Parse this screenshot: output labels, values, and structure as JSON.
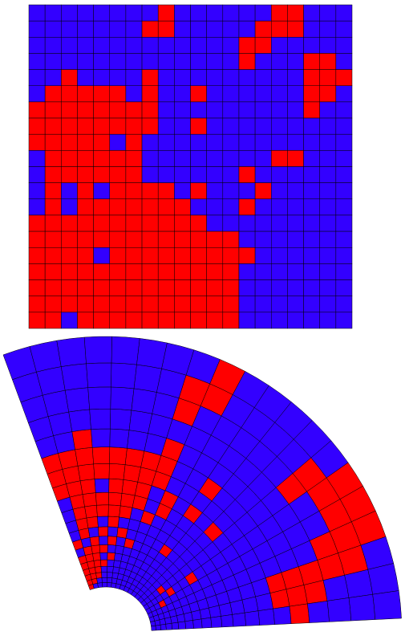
{
  "palette": [
    "#3300ff",
    "#ff0000"
  ],
  "square_grid": {
    "rows": [
      [
        0,
        0,
        0,
        0,
        0,
        0,
        0,
        0,
        1,
        0,
        0,
        0,
        0,
        0,
        0,
        1,
        1,
        0,
        0,
        0
      ],
      [
        0,
        0,
        0,
        0,
        0,
        0,
        0,
        1,
        1,
        0,
        0,
        0,
        0,
        0,
        1,
        1,
        1,
        0,
        0,
        0
      ],
      [
        0,
        0,
        0,
        0,
        0,
        0,
        0,
        0,
        0,
        0,
        0,
        0,
        0,
        1,
        1,
        0,
        0,
        0,
        0,
        0
      ],
      [
        0,
        0,
        0,
        0,
        0,
        0,
        0,
        0,
        0,
        0,
        0,
        0,
        0,
        1,
        0,
        0,
        0,
        1,
        1,
        0
      ],
      [
        0,
        0,
        1,
        0,
        0,
        0,
        0,
        1,
        0,
        0,
        0,
        0,
        0,
        0,
        0,
        0,
        0,
        1,
        1,
        1
      ],
      [
        0,
        1,
        1,
        1,
        1,
        1,
        0,
        1,
        0,
        0,
        1,
        0,
        0,
        0,
        0,
        0,
        0,
        1,
        1,
        0
      ],
      [
        1,
        1,
        1,
        1,
        1,
        1,
        1,
        1,
        0,
        0,
        0,
        0,
        0,
        0,
        0,
        0,
        0,
        1,
        0,
        0
      ],
      [
        1,
        1,
        1,
        1,
        1,
        1,
        1,
        1,
        0,
        0,
        1,
        0,
        0,
        0,
        0,
        0,
        0,
        0,
        0,
        0
      ],
      [
        1,
        1,
        1,
        1,
        1,
        0,
        1,
        0,
        0,
        0,
        0,
        0,
        0,
        0,
        0,
        0,
        0,
        0,
        0,
        0
      ],
      [
        0,
        1,
        1,
        1,
        1,
        1,
        1,
        0,
        0,
        0,
        0,
        0,
        0,
        0,
        0,
        1,
        1,
        0,
        0,
        0
      ],
      [
        0,
        1,
        1,
        1,
        1,
        1,
        1,
        0,
        0,
        0,
        0,
        0,
        0,
        1,
        0,
        0,
        0,
        0,
        0,
        0
      ],
      [
        0,
        1,
        0,
        1,
        0,
        1,
        1,
        1,
        1,
        0,
        1,
        0,
        0,
        0,
        1,
        0,
        0,
        0,
        0,
        0
      ],
      [
        0,
        1,
        0,
        1,
        1,
        1,
        1,
        1,
        1,
        1,
        0,
        0,
        0,
        1,
        0,
        0,
        0,
        0,
        0,
        0
      ],
      [
        1,
        1,
        1,
        1,
        1,
        1,
        1,
        1,
        1,
        1,
        1,
        0,
        0,
        0,
        0,
        0,
        0,
        0,
        0,
        0
      ],
      [
        1,
        1,
        1,
        1,
        1,
        1,
        1,
        1,
        1,
        1,
        1,
        1,
        1,
        0,
        0,
        0,
        0,
        0,
        0,
        0
      ],
      [
        1,
        1,
        1,
        1,
        0,
        1,
        1,
        1,
        1,
        1,
        1,
        1,
        1,
        1,
        0,
        0,
        0,
        0,
        0,
        0
      ],
      [
        1,
        1,
        1,
        1,
        1,
        1,
        1,
        1,
        1,
        1,
        1,
        1,
        1,
        0,
        0,
        0,
        0,
        0,
        0,
        0
      ],
      [
        1,
        1,
        1,
        1,
        1,
        1,
        1,
        1,
        1,
        1,
        1,
        1,
        1,
        0,
        0,
        0,
        0,
        0,
        0,
        0
      ],
      [
        1,
        1,
        1,
        1,
        1,
        1,
        1,
        1,
        1,
        1,
        1,
        1,
        1,
        0,
        0,
        0,
        0,
        0,
        0,
        0
      ],
      [
        1,
        1,
        0,
        1,
        1,
        1,
        1,
        1,
        1,
        1,
        1,
        1,
        1,
        0,
        0,
        0,
        0,
        0,
        0,
        0
      ]
    ]
  },
  "fan_grid": {
    "rings": [
      [
        1,
        0,
        0,
        0,
        0,
        0,
        0,
        0,
        0,
        0,
        0,
        0,
        0,
        0,
        0,
        0,
        0,
        0,
        0,
        0
      ],
      [
        1,
        1,
        0,
        0,
        0,
        0,
        0,
        0,
        0,
        0,
        0,
        0,
        0,
        0,
        0,
        0,
        0,
        0,
        0,
        0
      ],
      [
        1,
        1,
        1,
        0,
        0,
        0,
        0,
        0,
        0,
        0,
        0,
        0,
        0,
        0,
        0,
        0,
        0,
        0,
        0,
        0
      ],
      [
        1,
        1,
        1,
        0,
        0,
        0,
        0,
        0,
        0,
        0,
        0,
        0,
        0,
        0,
        0,
        1,
        0,
        0,
        0,
        0
      ],
      [
        1,
        1,
        1,
        1,
        0,
        0,
        0,
        0,
        0,
        0,
        0,
        0,
        0,
        1,
        0,
        0,
        0,
        0,
        0,
        0
      ],
      [
        1,
        1,
        1,
        0,
        1,
        0,
        0,
        0,
        0,
        0,
        0,
        0,
        0,
        0,
        1,
        0,
        0,
        0,
        0,
        0
      ],
      [
        0,
        1,
        1,
        1,
        0,
        0,
        0,
        0,
        0,
        0,
        0,
        0,
        0,
        0,
        0,
        0,
        0,
        0,
        0,
        0
      ],
      [
        1,
        0,
        1,
        0,
        1,
        0,
        1,
        0,
        0,
        0,
        0,
        0,
        0,
        0,
        0,
        0,
        0,
        0,
        0,
        0
      ],
      [
        0,
        1,
        0,
        1,
        0,
        1,
        0,
        0,
        0,
        0,
        1,
        0,
        0,
        0,
        1,
        0,
        0,
        0,
        0,
        0
      ],
      [
        0,
        1,
        1,
        0,
        1,
        0,
        0,
        0,
        0,
        0,
        0,
        0,
        0,
        0,
        0,
        0,
        0,
        0,
        0,
        0
      ],
      [
        0,
        1,
        1,
        1,
        1,
        1,
        0,
        1,
        0,
        0,
        0,
        0,
        0,
        0,
        0,
        0,
        0,
        0,
        0,
        0
      ],
      [
        0,
        1,
        1,
        1,
        1,
        1,
        1,
        0,
        1,
        0,
        0,
        0,
        0,
        0,
        0,
        0,
        0,
        0,
        0,
        0
      ],
      [
        1,
        1,
        1,
        0,
        1,
        1,
        1,
        0,
        1,
        0,
        1,
        0,
        1,
        0,
        0,
        0,
        0,
        0,
        0,
        0
      ],
      [
        1,
        1,
        1,
        1,
        1,
        1,
        1,
        1,
        0,
        0,
        0,
        0,
        0,
        0,
        0,
        0,
        0,
        0,
        0,
        0
      ],
      [
        1,
        1,
        1,
        1,
        1,
        1,
        1,
        1,
        0,
        0,
        1,
        0,
        0,
        0,
        0,
        0,
        0,
        1,
        1,
        0
      ],
      [
        0,
        0,
        1,
        0,
        0,
        0,
        0,
        1,
        0,
        0,
        0,
        0,
        0,
        0,
        0,
        0,
        0,
        1,
        1,
        1
      ],
      [
        0,
        0,
        0,
        0,
        0,
        0,
        0,
        0,
        0,
        0,
        0,
        0,
        0,
        0,
        0,
        0,
        0,
        1,
        1,
        0
      ],
      [
        0,
        0,
        0,
        0,
        0,
        0,
        0,
        1,
        0,
        0,
        0,
        0,
        0,
        1,
        0,
        0,
        1,
        1,
        0,
        0
      ],
      [
        0,
        0,
        0,
        0,
        0,
        0,
        0,
        1,
        1,
        0,
        0,
        0,
        0,
        1,
        1,
        1,
        1,
        1,
        0,
        0
      ],
      [
        0,
        0,
        0,
        0,
        0,
        0,
        0,
        0,
        1,
        0,
        0,
        0,
        0,
        0,
        1,
        1,
        1,
        0,
        0,
        0
      ]
    ]
  }
}
